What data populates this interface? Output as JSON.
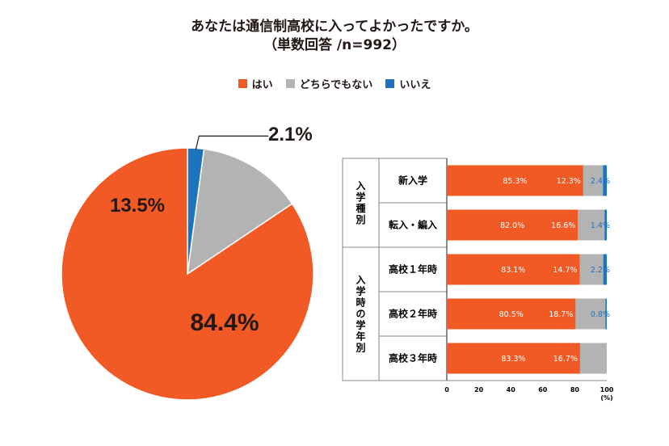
{
  "title_line1": "あなたは通信制高校に入ってよかったですか。",
  "title_line2": "（単数回答 /n=992）",
  "legend": [
    {
      "label": "はい",
      "color": "#f15a24"
    },
    {
      "label": "どちらでもない",
      "color": "#b3b3b3"
    },
    {
      "label": "いいえ",
      "color": "#1e73be"
    }
  ],
  "chart_data": [
    {
      "type": "pie",
      "labels": [
        "はい",
        "どちらでもない",
        "いいえ"
      ],
      "values": [
        84.4,
        13.5,
        2.1
      ],
      "value_labels": [
        "84.4%",
        "13.5%",
        "2.1%"
      ],
      "colors": [
        "#f15a24",
        "#b3b3b3",
        "#1e73be"
      ]
    },
    {
      "type": "bar",
      "orientation": "horizontal",
      "stacked": true,
      "groups": [
        {
          "label": "入学種別",
          "categories": [
            "新入学",
            "転入・編入"
          ]
        },
        {
          "label": "入学時の学年別",
          "categories": [
            "高校１年時",
            "高校２年時",
            "高校３年時"
          ]
        }
      ],
      "categories": [
        "新入学",
        "転入・編入",
        "高校１年時",
        "高校２年時",
        "高校３年時"
      ],
      "series": [
        {
          "name": "はい",
          "color": "#f15a24",
          "values": [
            85.3,
            82.0,
            83.1,
            80.5,
            83.3
          ],
          "labels": [
            "85.3%",
            "82.0%",
            "83.1%",
            "80.5%",
            "83.3%"
          ]
        },
        {
          "name": "どちらでもない",
          "color": "#b3b3b3",
          "values": [
            12.3,
            16.6,
            14.7,
            18.7,
            16.7
          ],
          "labels": [
            "12.3%",
            "16.6%",
            "14.7%",
            "18.7%",
            "16.7%"
          ]
        },
        {
          "name": "いいえ",
          "color": "#1e73be",
          "values": [
            2.4,
            1.4,
            2.2,
            0.8,
            0
          ],
          "labels": [
            "2.4%",
            "1.4%",
            "2.2%",
            "0.8%",
            ""
          ]
        }
      ],
      "xlim": [
        0,
        100
      ],
      "xticks": [
        "0",
        "20",
        "40",
        "60",
        "80",
        "100"
      ],
      "xunit": "(%)"
    }
  ]
}
